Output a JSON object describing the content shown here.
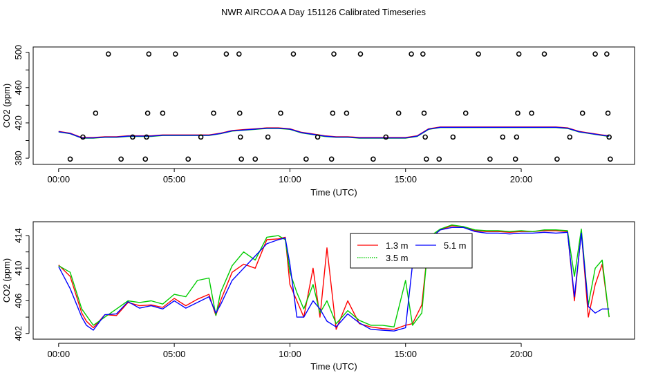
{
  "page_title": "NWR AIRCOA A  Day 151126  Calibrated Timeseries",
  "chart_data": [
    {
      "type": "scatter+line",
      "name": "calibration-panel",
      "xlabel": "Time (UTC)",
      "ylabel": "CO2 (ppm)",
      "xlim": [
        -1.1,
        24.9
      ],
      "ylim": [
        373,
        506
      ],
      "x_ticks": [
        {
          "v": 0,
          "label": "00:00"
        },
        {
          "v": 5,
          "label": "05:00"
        },
        {
          "v": 10,
          "label": "10:00"
        },
        {
          "v": 15,
          "label": "15:00"
        },
        {
          "v": 20,
          "label": "20:00"
        }
      ],
      "y_ticks": [
        {
          "v": 380,
          "label": "380"
        },
        {
          "v": 400,
          "label": ""
        },
        {
          "v": 420,
          "label": "420"
        },
        {
          "v": 440,
          "label": ""
        },
        {
          "v": 460,
          "label": "460"
        },
        {
          "v": 480,
          "label": ""
        },
        {
          "v": 500,
          "label": "500"
        }
      ],
      "reference_points": [
        {
          "x": 0.5,
          "y": 379
        },
        {
          "x": 1.05,
          "y": 404
        },
        {
          "x": 1.6,
          "y": 431
        },
        {
          "x": 2.15,
          "y": 498
        },
        {
          "x": 2.7,
          "y": 379
        },
        {
          "x": 3.2,
          "y": 404
        },
        {
          "x": 3.75,
          "y": 379
        },
        {
          "x": 3.8,
          "y": 404
        },
        {
          "x": 3.85,
          "y": 431
        },
        {
          "x": 3.9,
          "y": 498
        },
        {
          "x": 4.5,
          "y": 431
        },
        {
          "x": 5.05,
          "y": 498
        },
        {
          "x": 5.6,
          "y": 379
        },
        {
          "x": 6.15,
          "y": 404
        },
        {
          "x": 6.7,
          "y": 431
        },
        {
          "x": 7.25,
          "y": 498
        },
        {
          "x": 7.8,
          "y": 498
        },
        {
          "x": 7.83,
          "y": 431
        },
        {
          "x": 7.86,
          "y": 404
        },
        {
          "x": 7.9,
          "y": 379
        },
        {
          "x": 8.5,
          "y": 379
        },
        {
          "x": 9.05,
          "y": 404
        },
        {
          "x": 9.6,
          "y": 431
        },
        {
          "x": 10.15,
          "y": 498
        },
        {
          "x": 10.7,
          "y": 379
        },
        {
          "x": 11.2,
          "y": 404
        },
        {
          "x": 11.8,
          "y": 379
        },
        {
          "x": 11.85,
          "y": 431
        },
        {
          "x": 11.9,
          "y": 498
        },
        {
          "x": 12.45,
          "y": 431
        },
        {
          "x": 13.05,
          "y": 498
        },
        {
          "x": 13.6,
          "y": 379
        },
        {
          "x": 14.15,
          "y": 404
        },
        {
          "x": 14.7,
          "y": 431
        },
        {
          "x": 15.25,
          "y": 498
        },
        {
          "x": 15.75,
          "y": 498
        },
        {
          "x": 15.8,
          "y": 431
        },
        {
          "x": 15.85,
          "y": 404
        },
        {
          "x": 15.9,
          "y": 379
        },
        {
          "x": 16.45,
          "y": 379
        },
        {
          "x": 17.05,
          "y": 404
        },
        {
          "x": 17.6,
          "y": 431
        },
        {
          "x": 18.15,
          "y": 498
        },
        {
          "x": 18.65,
          "y": 379
        },
        {
          "x": 19.2,
          "y": 404
        },
        {
          "x": 19.75,
          "y": 379
        },
        {
          "x": 19.8,
          "y": 404
        },
        {
          "x": 19.85,
          "y": 431
        },
        {
          "x": 19.9,
          "y": 498
        },
        {
          "x": 20.45,
          "y": 431
        },
        {
          "x": 21.0,
          "y": 498
        },
        {
          "x": 21.55,
          "y": 379
        },
        {
          "x": 22.1,
          "y": 404
        },
        {
          "x": 22.65,
          "y": 431
        },
        {
          "x": 23.2,
          "y": 498
        },
        {
          "x": 23.7,
          "y": 498
        },
        {
          "x": 23.75,
          "y": 431
        },
        {
          "x": 23.8,
          "y": 404
        },
        {
          "x": 23.85,
          "y": 379
        }
      ],
      "series_points": {
        "x": [
          0,
          0.5,
          1,
          1.5,
          2,
          2.5,
          3,
          3.5,
          4,
          4.5,
          5,
          5.5,
          6,
          6.5,
          7,
          7.5,
          8,
          8.5,
          9,
          9.5,
          10,
          10.5,
          11,
          11.5,
          12,
          12.5,
          13,
          13.5,
          14,
          14.5,
          15,
          15.5,
          16,
          16.5,
          17,
          17.5,
          18,
          18.5,
          19,
          19.5,
          20,
          20.5,
          21,
          21.5,
          22,
          22.5,
          23,
          23.5,
          23.8
        ],
        "y": [
          410,
          408,
          403,
          403,
          404,
          404,
          405,
          405,
          405,
          406,
          406,
          406,
          406,
          406,
          408,
          411,
          412,
          413,
          414,
          414,
          413,
          409,
          407,
          405,
          404,
          404,
          403,
          403,
          403,
          403,
          403,
          405,
          413,
          415,
          415,
          415,
          415,
          415,
          415,
          415,
          415,
          415,
          415,
          415,
          414,
          410,
          408,
          406,
          405
        ]
      }
    },
    {
      "type": "line",
      "name": "timeseries-panel",
      "xlabel": "Time (UTC)",
      "ylabel": "CO2 (ppm)",
      "xlim": [
        -1.1,
        24.9
      ],
      "ylim": [
        401.3,
        415.7
      ],
      "x_ticks": [
        {
          "v": 0,
          "label": "00:00"
        },
        {
          "v": 5,
          "label": "05:00"
        },
        {
          "v": 10,
          "label": "10:00"
        },
        {
          "v": 15,
          "label": "15:00"
        },
        {
          "v": 20,
          "label": "20:00"
        }
      ],
      "y_ticks": [
        {
          "v": 402,
          "label": "402"
        },
        {
          "v": 404,
          "label": ""
        },
        {
          "v": 406,
          "label": "406"
        },
        {
          "v": 408,
          "label": ""
        },
        {
          "v": 410,
          "label": "410"
        },
        {
          "v": 412,
          "label": ""
        },
        {
          "v": 414,
          "label": "414"
        }
      ],
      "legend": {
        "entries": [
          {
            "label": "1.3 m",
            "color": "#ff0000",
            "dash": "solid"
          },
          {
            "label": "3.5 m",
            "color": "#00cc00",
            "dash": "dotted"
          },
          {
            "label": "5.1 m",
            "color": "#0000ff",
            "dash": "solid"
          }
        ]
      },
      "x": [
        0,
        0.5,
        1,
        1.2,
        1.5,
        2,
        2.5,
        3,
        3.5,
        4,
        4.5,
        5,
        5.5,
        6,
        6.5,
        6.8,
        7,
        7.5,
        8,
        8.5,
        9,
        9.5,
        9.8,
        10,
        10.3,
        10.6,
        11,
        11.3,
        11.6,
        12,
        12.5,
        13,
        13.5,
        14,
        14.5,
        15,
        15.3,
        15.7,
        16,
        16.5,
        17,
        17.5,
        18,
        18.5,
        19,
        19.5,
        20,
        20.5,
        21,
        21.5,
        22,
        22.3,
        22.6,
        22.9,
        23.2,
        23.5,
        23.8
      ],
      "series": [
        {
          "name": "1.3 m",
          "color": "#ff0000",
          "values": [
            410.4,
            409,
            404.5,
            403.5,
            402.7,
            404.3,
            404.2,
            405.8,
            405.4,
            405.5,
            405.2,
            406.3,
            405.4,
            406.2,
            406.8,
            404.2,
            406,
            409.5,
            410.5,
            410,
            413.5,
            413.6,
            413.8,
            408,
            406,
            404,
            410,
            404,
            412.5,
            402.5,
            406,
            403.2,
            402.8,
            402.6,
            402.5,
            403,
            403.2,
            405.5,
            413.5,
            414.7,
            415.2,
            415.1,
            414.6,
            414.5,
            414.5,
            414.4,
            414.5,
            414.5,
            414.6,
            414.6,
            414.5,
            406,
            414.5,
            404,
            408,
            410.5,
            404
          ]
        },
        {
          "name": "3.5 m",
          "color": "#00cc00",
          "values": [
            410.3,
            409.5,
            405,
            404.2,
            403,
            404,
            405,
            406,
            405.8,
            406,
            405.6,
            406.8,
            406.5,
            408.5,
            408.8,
            404.2,
            407,
            410.3,
            412,
            411,
            413.8,
            414,
            413.5,
            409.5,
            407,
            405,
            408,
            404.5,
            406,
            403.2,
            404.8,
            403.6,
            403,
            403,
            402.8,
            408.5,
            403,
            404.5,
            413.8,
            414.8,
            415.3,
            415.1,
            414.7,
            414.6,
            414.6,
            414.5,
            414.6,
            414.5,
            414.7,
            414.7,
            414.6,
            409,
            414.8,
            405.5,
            410,
            411,
            404
          ]
        },
        {
          "name": "5.1 m",
          "color": "#0000ff",
          "values": [
            410.2,
            407.5,
            404,
            403,
            402.4,
            404.3,
            404.4,
            405.9,
            405.1,
            405.4,
            405,
            406,
            405.1,
            405.8,
            406.5,
            404.5,
            405.5,
            408.5,
            410,
            411.5,
            413,
            413.5,
            413.7,
            410.5,
            404,
            404,
            406,
            405,
            403.5,
            402.8,
            404.4,
            403.3,
            402.5,
            402.4,
            402.3,
            402.7,
            410.5,
            411,
            413.5,
            414.7,
            415,
            415,
            414.5,
            414.3,
            414.3,
            414.2,
            414.3,
            414.3,
            414.4,
            414.3,
            414.4,
            406.5,
            414.3,
            405.3,
            404.5,
            405,
            405
          ]
        }
      ]
    }
  ]
}
